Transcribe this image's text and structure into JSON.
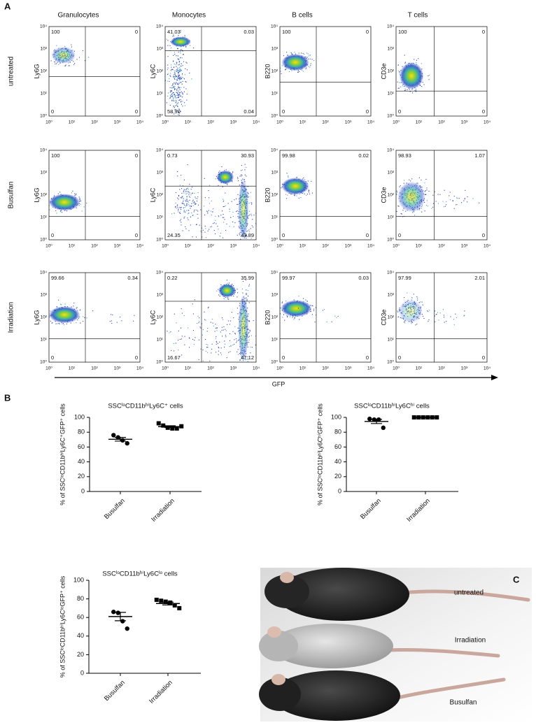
{
  "panel_a": {
    "label": "A",
    "columns": [
      "Granulocytes",
      "Monocytes",
      "B cells",
      "T cells"
    ],
    "ticks": [
      "10⁰",
      "10¹",
      "10²",
      "10³",
      "10⁴"
    ],
    "x_label": "GFP",
    "rows": [
      {
        "label": "untreated",
        "plots": [
          {
            "y_label": "Ly6G",
            "quadrants": [
              "100",
              "0",
              "0",
              "0"
            ]
          },
          {
            "y_label": "Ly6C",
            "quadrants": [
              "41.03",
              "0.03",
              "58.90",
              "0.04"
            ]
          },
          {
            "y_label": "B220",
            "quadrants": [
              "100",
              "0",
              "0",
              "0"
            ]
          },
          {
            "y_label": "CD3e",
            "quadrants": [
              "100",
              "0",
              "0",
              "0"
            ]
          }
        ]
      },
      {
        "label": "Busulfan",
        "plots": [
          {
            "y_label": "Ly6G",
            "quadrants": [
              "100",
              "0",
              "0",
              "0"
            ]
          },
          {
            "y_label": "Ly6C",
            "quadrants": [
              "0.73",
              "30.93",
              "24.35",
              "43.89"
            ]
          },
          {
            "y_label": "B220",
            "quadrants": [
              "99.98",
              "0.02",
              "0",
              "0"
            ]
          },
          {
            "y_label": "CD3e",
            "quadrants": [
              "98.93",
              "1.07",
              "0",
              "0"
            ]
          }
        ]
      },
      {
        "label": "Irradiation",
        "plots": [
          {
            "y_label": "Ly6G",
            "quadrants": [
              "99.66",
              "0.34",
              "0",
              "0"
            ]
          },
          {
            "y_label": "Ly6C",
            "quadrants": [
              "0.22",
              "35.99",
              "16.67",
              "47.12"
            ]
          },
          {
            "y_label": "B220",
            "quadrants": [
              "99.97",
              "0.03",
              "0",
              "0"
            ]
          },
          {
            "y_label": "CD3e",
            "quadrants": [
              "97.99",
              "2.01",
              "0",
              "0"
            ]
          }
        ]
      }
    ]
  },
  "panel_b_label": "B",
  "chart_data": [
    {
      "type": "dot",
      "title": "SSCˡᵒCD11bʰⁱLy6C⁺ cells",
      "y_label": "% of SSCˡᵒCD11bʰⁱLy6C⁺GFP⁺ cells",
      "categories": [
        "Busulfan",
        "Irradiation"
      ],
      "values": [
        [
          76,
          73,
          69,
          65
        ],
        [
          92,
          89,
          86,
          85,
          85,
          88
        ]
      ],
      "mean": [
        70.5,
        87.5
      ],
      "sem": [
        2.5,
        1.2
      ],
      "ylim": [
        0,
        100
      ],
      "yticks": [
        0,
        20,
        40,
        60,
        80,
        100
      ],
      "color": "#000000"
    },
    {
      "type": "dot",
      "title": "SSCˡᵒCD11bʰⁱLy6Cʰⁱ cells",
      "y_label": "% of SSCˡᵒCD11bʰⁱLy6CʰⁱGFP⁺ cells",
      "categories": [
        "Busulfan",
        "Irradiation"
      ],
      "values": [
        [
          98,
          97,
          97,
          86
        ],
        [
          100,
          100,
          100,
          100,
          100,
          100
        ]
      ],
      "mean": [
        94.5,
        100
      ],
      "sem": [
        2.8,
        0
      ],
      "ylim": [
        0,
        100
      ],
      "yticks": [
        0,
        20,
        40,
        60,
        80,
        100
      ],
      "color": "#000000"
    },
    {
      "type": "dot",
      "title": "SSCˡᵒCD11bʰⁱLy6Cˡᵒ cells",
      "y_label": "% of SSCˡᵒCD11bʰⁱLy6CˡᵒGFP⁺ cells",
      "categories": [
        "Busulfan",
        "Irradiation"
      ],
      "values": [
        [
          66,
          65,
          56,
          48
        ],
        [
          79,
          78,
          77,
          76,
          73,
          70
        ]
      ],
      "mean": [
        61,
        75
      ],
      "sem": [
        4.5,
        1.5
      ],
      "ylim": [
        0,
        100
      ],
      "yticks": [
        0,
        20,
        40,
        60,
        80,
        100
      ],
      "color": "#000000"
    }
  ],
  "panel_c": {
    "label": "C",
    "mice": [
      "untreated",
      "Irradiation",
      "Busulfan"
    ]
  }
}
